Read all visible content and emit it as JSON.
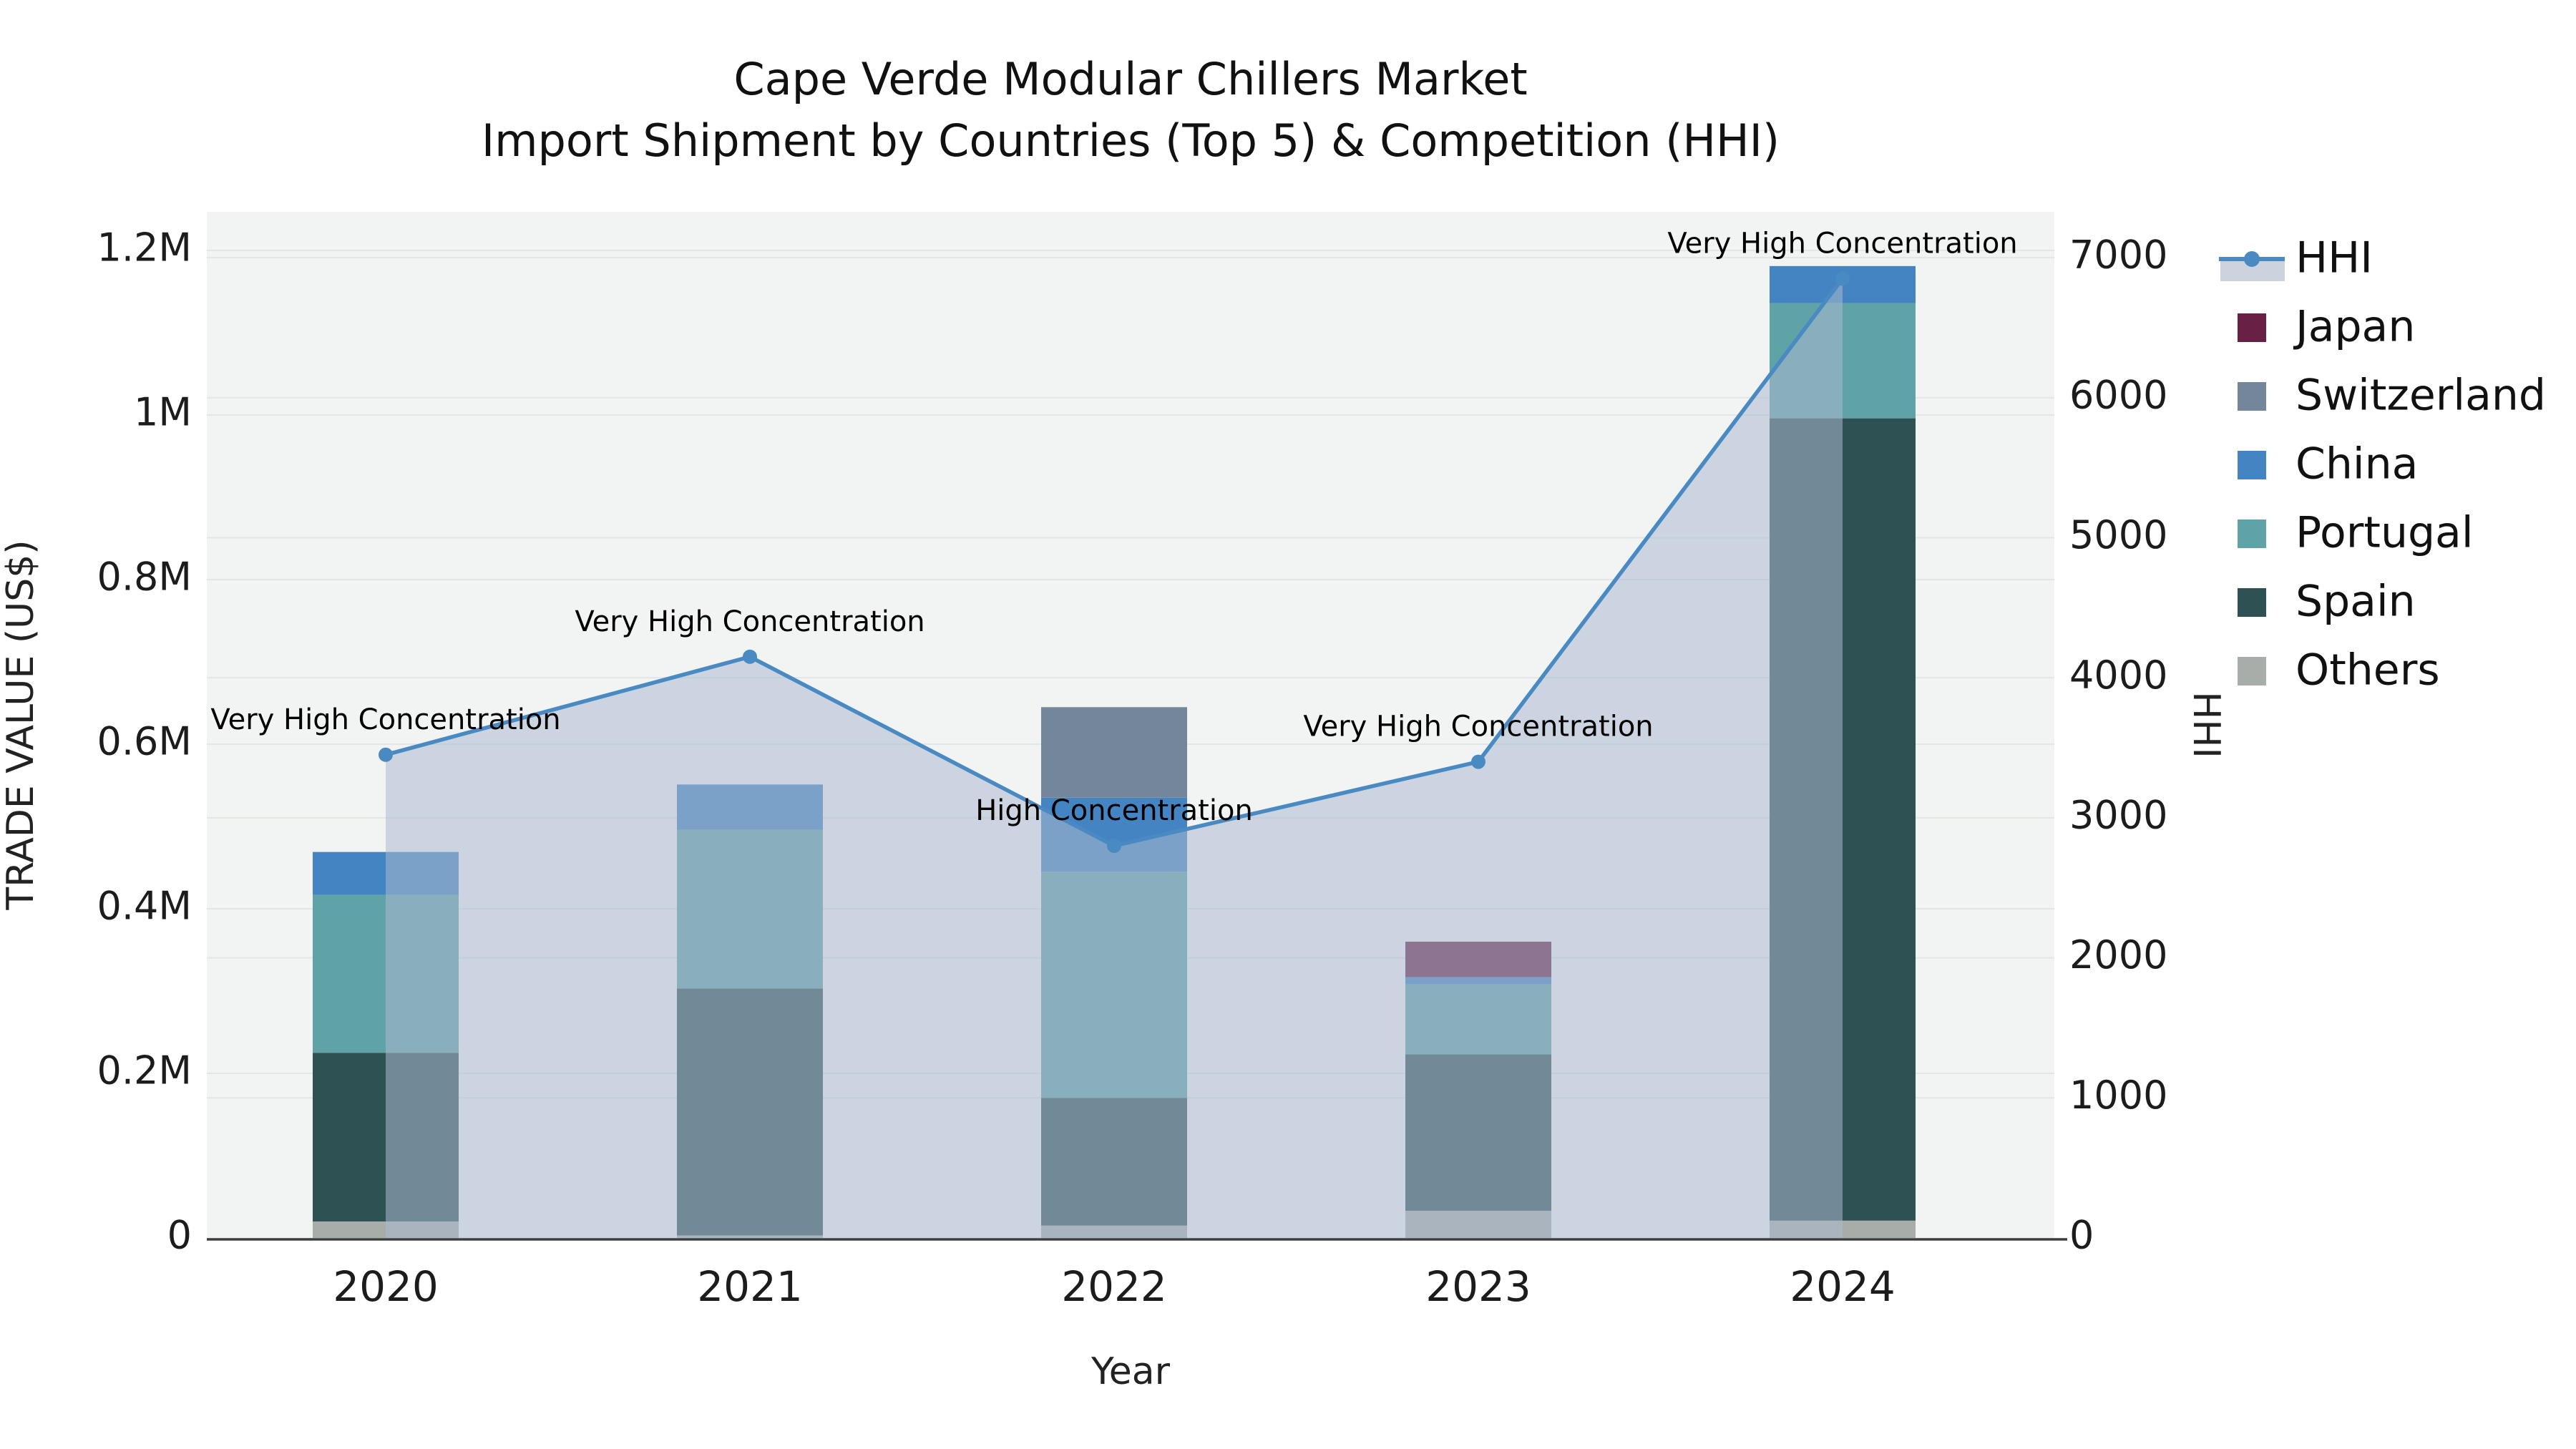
{
  "title": {
    "line1": "Cape Verde Modular Chillers Market",
    "line2": "Import Shipment by Countries (Top 5) & Competition (HHI)"
  },
  "axes": {
    "x": {
      "title": "Year",
      "ticks": [
        "2020",
        "2021",
        "2022",
        "2023",
        "2024"
      ]
    },
    "y_left": {
      "title": "TRADE VALUE (US$)",
      "ticks": [
        "0",
        "0.2M",
        "0.4M",
        "0.6M",
        "0.8M",
        "1M",
        "1.2M"
      ],
      "tick_values": [
        0,
        200000,
        400000,
        600000,
        800000,
        1000000,
        1200000
      ]
    },
    "y_right": {
      "title": "HHI",
      "ticks": [
        "0",
        "1000",
        "2000",
        "3000",
        "4000",
        "5000",
        "6000",
        "7000"
      ],
      "tick_values": [
        0,
        1000,
        2000,
        3000,
        4000,
        5000,
        6000,
        7000
      ]
    }
  },
  "colors": {
    "hhi_line": "#4a8ac2",
    "hhi_fill": "rgba(172,186,207,0.55)",
    "hhi_legend_band": "#ccd3de",
    "japan": "#682144",
    "switzerland": "#74879a",
    "china": "#4484c2",
    "portugal": "#5fa3a6",
    "spain": "#2e5154",
    "others": "#a9ada9",
    "plot_bg": "#f2f3f3",
    "grid": "#e3e6e8",
    "axis_line": "#3c3e3e",
    "text": "#111111"
  },
  "legend": {
    "items": [
      {
        "label": "HHI",
        "type": "line",
        "color": "#4a8ac2"
      },
      {
        "label": "Japan",
        "type": "swatch",
        "color": "#682144"
      },
      {
        "label": "Switzerland",
        "type": "swatch",
        "color": "#74879a"
      },
      {
        "label": "China",
        "type": "swatch",
        "color": "#4484c2"
      },
      {
        "label": "Portugal",
        "type": "swatch",
        "color": "#5fa3a6"
      },
      {
        "label": "Spain",
        "type": "swatch",
        "color": "#2e5154"
      },
      {
        "label": "Others",
        "type": "swatch",
        "color": "#a9ada9"
      }
    ]
  },
  "chart_data": {
    "type": "bar+line",
    "title": "Cape Verde Modular Chillers Market — Import Shipment by Countries (Top 5) & Competition (HHI)",
    "categories": [
      "2020",
      "2021",
      "2022",
      "2023",
      "2024"
    ],
    "xlabel": "Year",
    "ylabel_left": "TRADE VALUE (US$)",
    "ylabel_right": "HHI",
    "ylim_left": [
      0,
      1250000
    ],
    "ylim_right": [
      0,
      7330
    ],
    "grid": true,
    "legend_position": "right",
    "bar_unit": "US$",
    "series": [
      {
        "name": "Others",
        "color": "#a9ada9",
        "values": [
          20000,
          3000,
          15000,
          33000,
          21000
        ]
      },
      {
        "name": "Spain",
        "color": "#2e5154",
        "values": [
          205000,
          300000,
          155000,
          190000,
          975000
        ]
      },
      {
        "name": "Portugal",
        "color": "#5fa3a6",
        "values": [
          192000,
          193000,
          275000,
          85000,
          140000
        ]
      },
      {
        "name": "China",
        "color": "#4484c2",
        "values": [
          52000,
          55000,
          90000,
          9000,
          45000
        ]
      },
      {
        "name": "Switzerland",
        "color": "#74879a",
        "values": [
          0,
          0,
          110000,
          0,
          0
        ]
      },
      {
        "name": "Japan",
        "color": "#682144",
        "values": [
          0,
          0,
          0,
          43000,
          0
        ]
      }
    ],
    "bar_totals": [
      469000,
      551000,
      645000,
      360000,
      1181000
    ],
    "hhi": {
      "name": "HHI",
      "color": "#4a8ac2",
      "axis": "right",
      "values": [
        3450,
        4150,
        2800,
        3400,
        6850
      ],
      "fill_to_zero": true
    },
    "annotations": [
      {
        "x": "2020",
        "text": "Very High Concentration"
      },
      {
        "x": "2021",
        "text": "Very High Concentration"
      },
      {
        "x": "2022",
        "text": "High Concentration"
      },
      {
        "x": "2023",
        "text": "Very High Concentration"
      },
      {
        "x": "2024",
        "text": "Very High Concentration"
      }
    ]
  }
}
